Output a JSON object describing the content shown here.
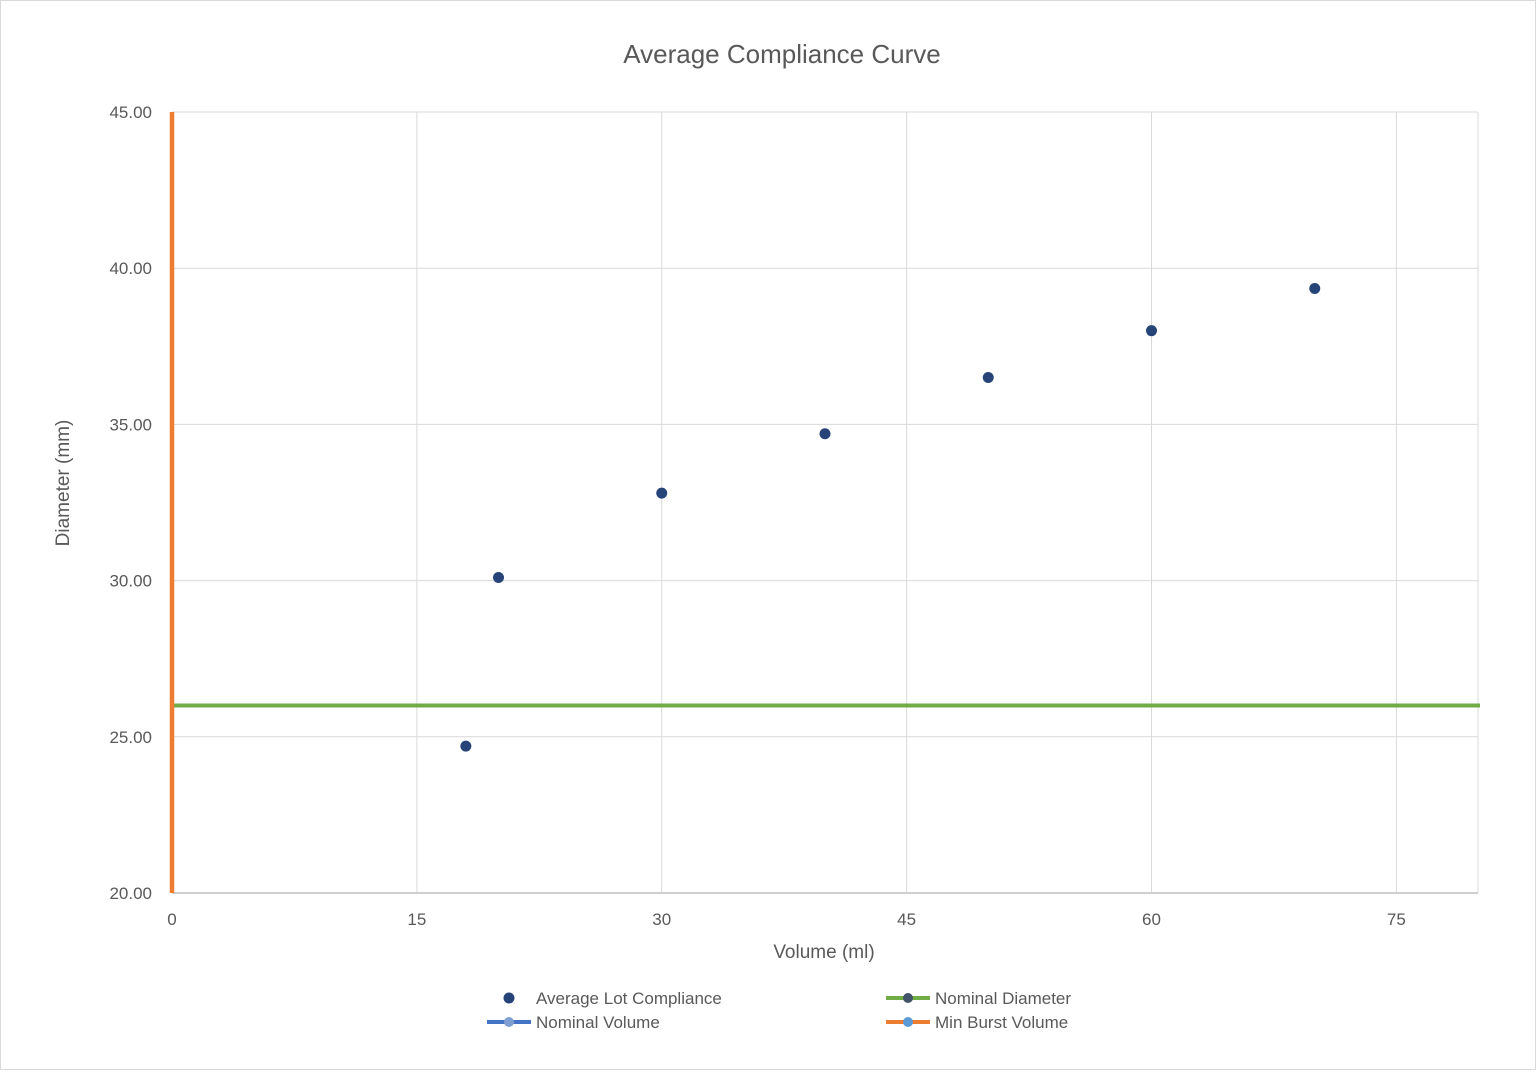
{
  "chart_data": {
    "type": "scatter",
    "title": "Average Compliance Curve",
    "xlabel": "Volume (ml)",
    "ylabel": "Diameter (mm)",
    "xlim": [
      0,
      80
    ],
    "ylim": [
      20,
      45
    ],
    "xticks": [
      0,
      15,
      30,
      45,
      60,
      75
    ],
    "xtick_labels": [
      "0",
      "15",
      "30",
      "45",
      "60",
      "75"
    ],
    "yticks": [
      20,
      25,
      30,
      35,
      40,
      45
    ],
    "ytick_labels": [
      "20.00",
      "25.00",
      "30.00",
      "35.00",
      "40.00",
      "45.00"
    ],
    "grid": true,
    "legend_position": "bottom",
    "series": [
      {
        "name": "Average Lot Compliance",
        "kind": "markers",
        "color": "#264478",
        "x": [
          18,
          20,
          30,
          40,
          50,
          60,
          70
        ],
        "y": [
          24.7,
          30.1,
          32.8,
          34.7,
          36.5,
          38.0,
          39.35
        ]
      },
      {
        "name": "Nominal Diameter",
        "kind": "horizontal-line",
        "color": "#70ad47",
        "marker_color": "#44546a",
        "y": 26
      },
      {
        "name": "Nominal Volume",
        "kind": "vertical-line",
        "color": "#4472c4",
        "marker_color": "#7f9fd3",
        "x": null
      },
      {
        "name": "Min Burst Volume",
        "kind": "vertical-line",
        "color": "#ed7d31",
        "marker_color": "#5b9bd5",
        "x": 0
      }
    ]
  }
}
